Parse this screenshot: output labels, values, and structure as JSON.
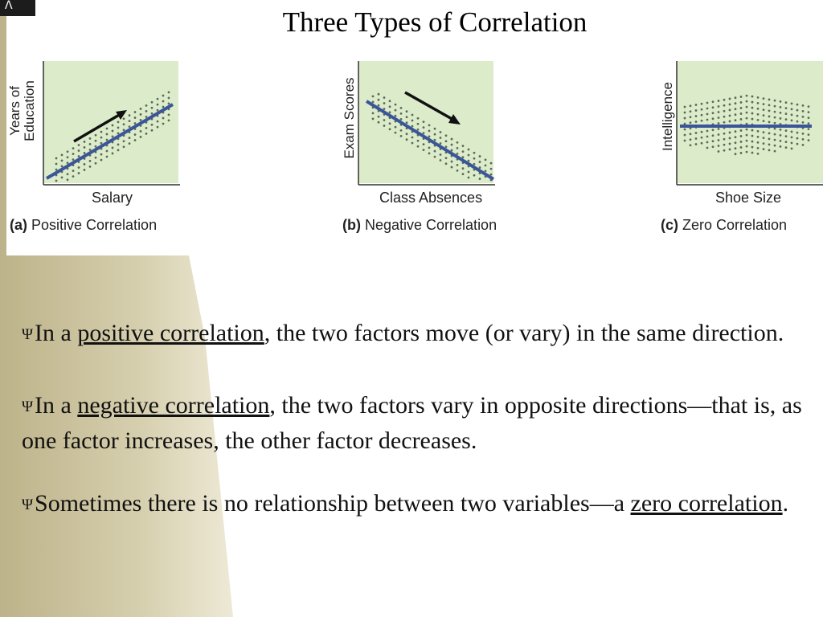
{
  "slide": {
    "title": "Three Types of Correlation",
    "bullet_glyph": "Ψ",
    "bullets": [
      {
        "pre": "In a ",
        "term": "positive correlation",
        "post": ", the two factors move (or vary) in the same direction."
      },
      {
        "pre": "In a ",
        "term": "negative correlation",
        "post": ", the two factors vary in opposite directions—that is, as one factor increases, the other factor decreases."
      },
      {
        "pre": "Sometimes there is no relationship between two variables—a ",
        "term": "zero correlation",
        "post": "."
      }
    ]
  },
  "figures": [
    {
      "id": "a",
      "letter": "(a)",
      "caption": "Positive Correlation",
      "xlabel": "Salary",
      "ylabel": [
        "Years of",
        "Education"
      ],
      "trend": "positive"
    },
    {
      "id": "b",
      "letter": "(b)",
      "caption": "Negative Correlation",
      "xlabel": "Class Absences",
      "ylabel": [
        "Exam Scores"
      ],
      "trend": "negative"
    },
    {
      "id": "c",
      "letter": "(c)",
      "caption": "Zero Correlation",
      "xlabel": "Shoe Size",
      "ylabel": [
        "Intelligence"
      ],
      "trend": "zero"
    }
  ],
  "colors": {
    "panel_fill": "#dceccb",
    "trend_line": "#3b559b",
    "dots": "#5a6a55",
    "arrow": "#111111",
    "band": "#cfc7a4"
  }
}
